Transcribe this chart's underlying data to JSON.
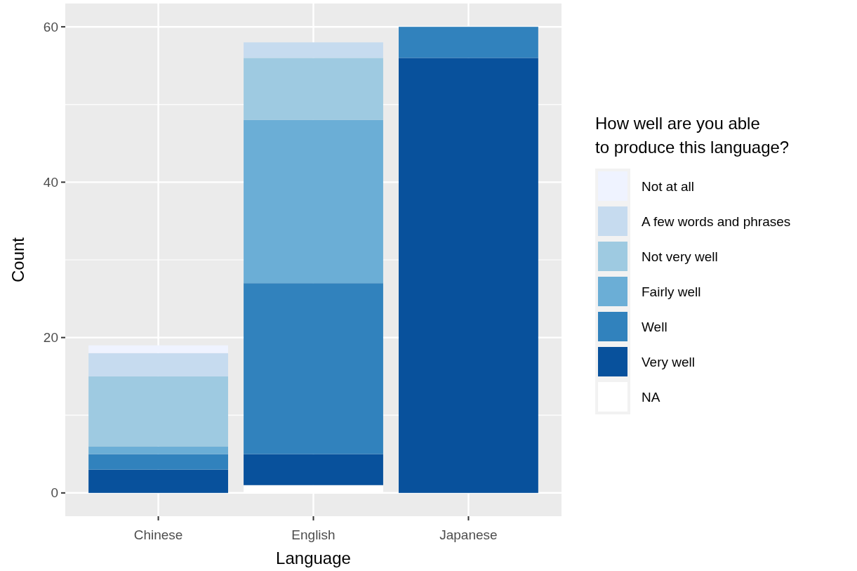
{
  "chart_data": {
    "type": "bar",
    "stacked": true,
    "xlabel": "Language",
    "ylabel": "Count",
    "legend_title": "How well are you able\nto produce this language?",
    "categories": [
      "Chinese",
      "English",
      "Japanese"
    ],
    "series": [
      {
        "name": "NA",
        "color": "#ffffff",
        "values": [
          0,
          1,
          0
        ]
      },
      {
        "name": "Very well",
        "color": "#08519c",
        "values": [
          3,
          4,
          56
        ]
      },
      {
        "name": "Well",
        "color": "#3182bd",
        "values": [
          2,
          22,
          4
        ]
      },
      {
        "name": "Fairly well",
        "color": "#6baed6",
        "values": [
          1,
          21,
          0
        ]
      },
      {
        "name": "Not very well",
        "color": "#9ecae1",
        "values": [
          9,
          8,
          0
        ]
      },
      {
        "name": "A few words and phrases",
        "color": "#c6dbef",
        "values": [
          3,
          2,
          0
        ]
      },
      {
        "name": "Not at all",
        "color": "#eff3ff",
        "values": [
          1,
          0,
          0
        ]
      }
    ],
    "ylim": [
      -3,
      63
    ],
    "yticks": [
      0,
      20,
      40,
      60
    ],
    "grid": true,
    "legend": "right"
  }
}
